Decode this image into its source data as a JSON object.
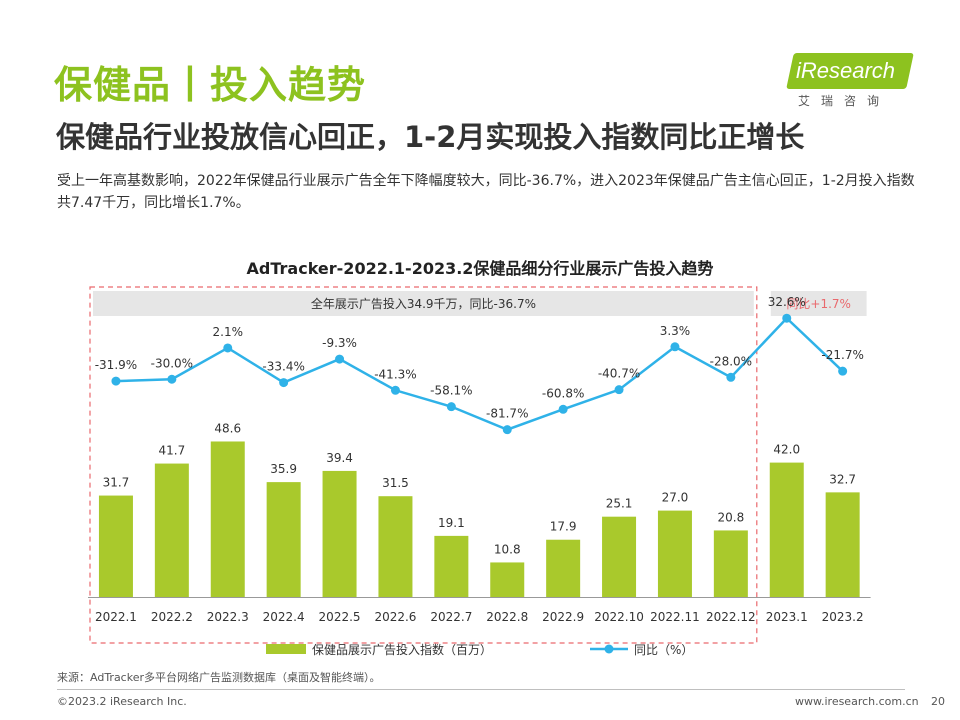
{
  "page": {
    "title": "保健品丨投入趋势",
    "subtitle": "保健品行业投放信心回正，1-2月实现投入指数同比正增长",
    "description": "受上一年高基数影响，2022年保健品行业展示广告全年下降幅度较大，同比-36.7%，进入2023年保健品广告主信心回正，1-2月投入指数共7.47千万，同比增长1.7%。",
    "source": "来源：AdTracker多平台网络广告监测数据库（桌面及智能终端）。",
    "copyright": "©2023.2 iResearch Inc.",
    "website": "www.iresearch.com.cn",
    "page_number": "20"
  },
  "logo": {
    "text": "iResearch",
    "subtext": "艾瑞咨询"
  },
  "colors": {
    "title_green": "#8dc21f",
    "bar_green": "#a9c92c",
    "line_blue": "#2fb2e8",
    "box_dashed_red": "#e9696d",
    "growth_label_red": "#e9696d",
    "annotation_bg": "#e6e6e6"
  },
  "chart_data": {
    "type": "bar",
    "title": "AdTracker-2022.1-2023.2保健品细分行业展示广告投入趋势",
    "categories": [
      "2022.1",
      "2022.2",
      "2022.3",
      "2022.4",
      "2022.5",
      "2022.6",
      "2022.7",
      "2022.8",
      "2022.9",
      "2022.10",
      "2022.11",
      "2022.12",
      "2023.1",
      "2023.2"
    ],
    "series": [
      {
        "name": "保健品展示广告投入指数（百万）",
        "type": "bar",
        "values": [
          31.7,
          41.7,
          48.6,
          35.9,
          39.4,
          31.5,
          19.1,
          10.8,
          17.9,
          25.1,
          27.0,
          20.8,
          42.0,
          32.7
        ],
        "labels": [
          "31.7",
          "41.7",
          "48.6",
          "35.9",
          "39.4",
          "31.5",
          "19.1",
          "10.8",
          "17.9",
          "25.1",
          "27.0",
          "20.8",
          "42.0",
          "32.7"
        ]
      },
      {
        "name": "同比（%）",
        "type": "line",
        "values": [
          -31.9,
          -30.0,
          2.1,
          -33.4,
          -9.3,
          -41.3,
          -58.1,
          -81.7,
          -60.8,
          -40.7,
          3.3,
          -28.0,
          32.6,
          -21.7
        ],
        "labels": [
          "-31.9%",
          "-30.0%",
          "2.1%",
          "-33.4%",
          "-9.3%",
          "-41.3%",
          "-58.1%",
          "-81.7%",
          "-60.8%",
          "-40.7%",
          "3.3%",
          "-28.0%",
          "32.6%",
          "-21.7%"
        ]
      }
    ],
    "annotations": {
      "year_2022": "全年展示广告投入34.9千万，同比-36.7%",
      "year_2023": "同比+1.7%"
    },
    "legend_position": "bottom",
    "grid": false
  }
}
